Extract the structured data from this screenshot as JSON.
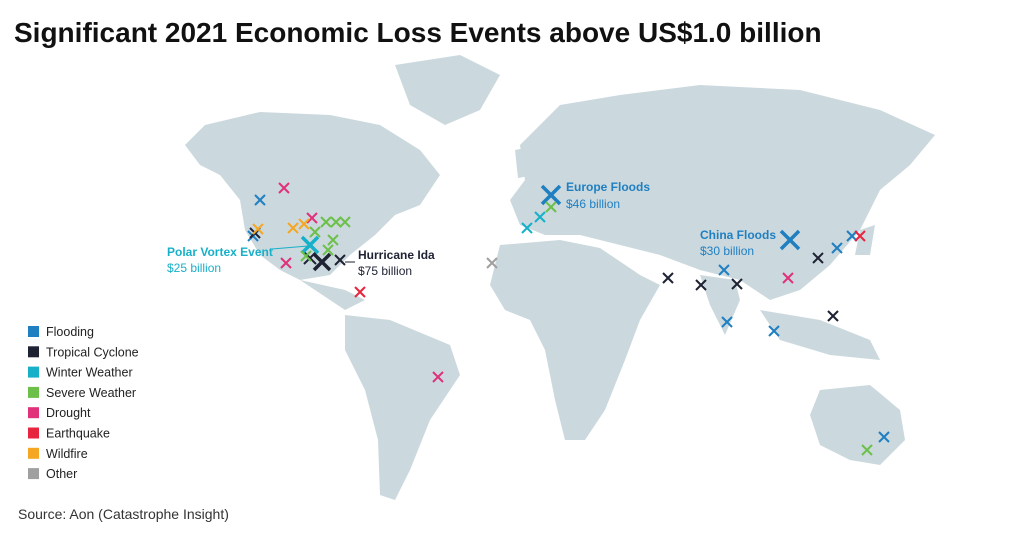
{
  "header": {
    "title": "Significant 2021 Economic Loss Events above US$1.0 billion"
  },
  "legend": [
    {
      "label": "Flooding",
      "color": "#1f7fc1"
    },
    {
      "label": "Tropical Cyclone",
      "color": "#1e2233"
    },
    {
      "label": "Winter Weather",
      "color": "#17b0c8"
    },
    {
      "label": "Severe Weather",
      "color": "#6cc04a"
    },
    {
      "label": "Drought",
      "color": "#e0317a"
    },
    {
      "label": "Earthquake",
      "color": "#e8253f"
    },
    {
      "label": "Wildfire",
      "color": "#f5a623"
    },
    {
      "label": "Other",
      "color": "#a0a0a0"
    }
  ],
  "annotations": [
    {
      "name": "Europe Floods",
      "loss": "$46 billion"
    },
    {
      "name": "China Floods",
      "loss": "$30 billion"
    },
    {
      "name": "Polar Vortex Event",
      "loss": "$25 billion"
    },
    {
      "name": "Hurricane Ida",
      "loss": "$75 billion"
    }
  ],
  "source": "Source: Aon (Catastrophe Insight)"
}
